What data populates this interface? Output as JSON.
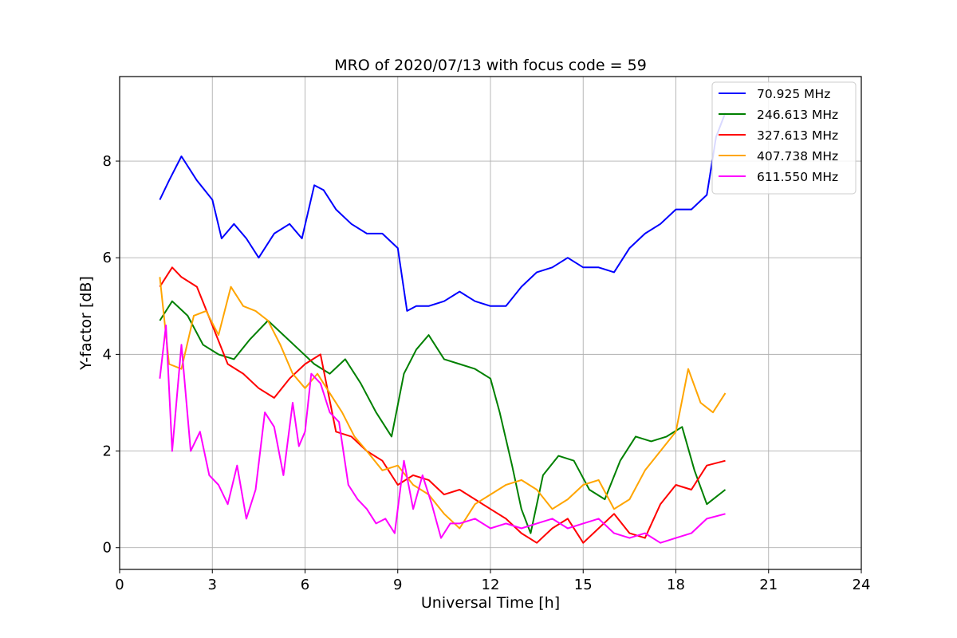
{
  "chart_data": {
    "type": "line",
    "title": "MRO of 2020/07/13 with focus code = 59",
    "xlabel": "Universal Time [h]",
    "ylabel": "Y-factor [dB]",
    "xlim": [
      0,
      24
    ],
    "ylim": [
      -0.45,
      9.75
    ],
    "xticks": [
      0,
      3,
      6,
      9,
      12,
      15,
      18,
      21,
      24
    ],
    "yticks": [
      0,
      2,
      4,
      6,
      8
    ],
    "grid": true,
    "legend_position": "top-right",
    "series": [
      {
        "name": " 70.925 MHz",
        "color": "#0000ff",
        "x": [
          1.3,
          1.6,
          2.0,
          2.5,
          3.0,
          3.3,
          3.7,
          4.1,
          4.5,
          5.0,
          5.5,
          5.9,
          6.3,
          6.6,
          7.0,
          7.5,
          8.0,
          8.5,
          9.0,
          9.3,
          9.6,
          10.0,
          10.5,
          11.0,
          11.5,
          12.0,
          12.5,
          13.0,
          13.5,
          14.0,
          14.5,
          15.0,
          15.5,
          16.0,
          16.5,
          17.0,
          17.5,
          18.0,
          18.5,
          19.0,
          19.3,
          19.6
        ],
        "y": [
          7.2,
          7.6,
          8.1,
          7.6,
          7.2,
          6.4,
          6.7,
          6.4,
          6.0,
          6.5,
          6.7,
          6.4,
          7.5,
          7.4,
          7.0,
          6.7,
          6.5,
          6.5,
          6.2,
          4.9,
          5.0,
          5.0,
          5.1,
          5.3,
          5.1,
          5.0,
          5.0,
          5.4,
          5.7,
          5.8,
          6.0,
          5.8,
          5.8,
          5.7,
          6.2,
          6.5,
          6.7,
          7.0,
          7.0,
          7.3,
          8.5,
          9.0
        ]
      },
      {
        "name": "246.613 MHz",
        "color": "#008000",
        "x": [
          1.3,
          1.7,
          2.2,
          2.7,
          3.2,
          3.7,
          4.2,
          4.8,
          5.3,
          5.8,
          6.3,
          6.8,
          7.3,
          7.8,
          8.3,
          8.8,
          9.2,
          9.6,
          10.0,
          10.5,
          11.0,
          11.5,
          12.0,
          12.3,
          12.7,
          13.0,
          13.3,
          13.7,
          14.2,
          14.7,
          15.2,
          15.7,
          16.2,
          16.7,
          17.2,
          17.7,
          18.2,
          18.6,
          19.0,
          19.6
        ],
        "y": [
          4.7,
          5.1,
          4.8,
          4.2,
          4.0,
          3.9,
          4.3,
          4.7,
          4.4,
          4.1,
          3.8,
          3.6,
          3.9,
          3.4,
          2.8,
          2.3,
          3.6,
          4.1,
          4.4,
          3.9,
          3.8,
          3.7,
          3.5,
          2.8,
          1.7,
          0.8,
          0.3,
          1.5,
          1.9,
          1.8,
          1.2,
          1.0,
          1.8,
          2.3,
          2.2,
          2.3,
          2.5,
          1.6,
          0.9,
          1.2
        ]
      },
      {
        "name": "327.613 MHz",
        "color": "#ff0000",
        "x": [
          1.3,
          1.7,
          2.0,
          2.5,
          3.0,
          3.5,
          4.0,
          4.5,
          5.0,
          5.5,
          6.0,
          6.5,
          7.0,
          7.5,
          8.0,
          8.5,
          9.0,
          9.5,
          10.0,
          10.5,
          11.0,
          11.5,
          12.0,
          12.5,
          13.0,
          13.5,
          14.0,
          14.5,
          15.0,
          15.5,
          16.0,
          16.5,
          17.0,
          17.5,
          18.0,
          18.5,
          19.0,
          19.6
        ],
        "y": [
          5.4,
          5.8,
          5.6,
          5.4,
          4.6,
          3.8,
          3.6,
          3.3,
          3.1,
          3.5,
          3.8,
          4.0,
          2.4,
          2.3,
          2.0,
          1.8,
          1.3,
          1.5,
          1.4,
          1.1,
          1.2,
          1.0,
          0.8,
          0.6,
          0.3,
          0.1,
          0.4,
          0.6,
          0.1,
          0.4,
          0.7,
          0.3,
          0.2,
          0.9,
          1.3,
          1.2,
          1.7,
          1.8
        ]
      },
      {
        "name": "407.738 MHz",
        "color": "#ffa500",
        "x": [
          1.3,
          1.6,
          2.0,
          2.4,
          2.8,
          3.2,
          3.6,
          4.0,
          4.4,
          4.8,
          5.2,
          5.6,
          6.0,
          6.4,
          6.8,
          7.2,
          7.6,
          8.0,
          8.5,
          9.0,
          9.5,
          10.0,
          10.5,
          11.0,
          11.5,
          12.0,
          12.5,
          13.0,
          13.5,
          14.0,
          14.5,
          15.0,
          15.5,
          16.0,
          16.5,
          17.0,
          17.5,
          18.0,
          18.4,
          18.8,
          19.2,
          19.6
        ],
        "y": [
          5.6,
          3.8,
          3.7,
          4.8,
          4.9,
          4.4,
          5.4,
          5.0,
          4.9,
          4.7,
          4.2,
          3.6,
          3.3,
          3.6,
          3.2,
          2.8,
          2.3,
          2.0,
          1.6,
          1.7,
          1.3,
          1.1,
          0.7,
          0.4,
          0.9,
          1.1,
          1.3,
          1.4,
          1.2,
          0.8,
          1.0,
          1.3,
          1.4,
          0.8,
          1.0,
          1.6,
          2.0,
          2.4,
          3.7,
          3.0,
          2.8,
          3.2
        ]
      },
      {
        "name": "611.550 MHz",
        "color": "#ff00ff",
        "x": [
          1.3,
          1.5,
          1.7,
          2.0,
          2.3,
          2.6,
          2.9,
          3.2,
          3.5,
          3.8,
          4.1,
          4.4,
          4.7,
          5.0,
          5.3,
          5.6,
          5.8,
          6.0,
          6.2,
          6.5,
          6.8,
          7.1,
          7.4,
          7.7,
          8.0,
          8.3,
          8.6,
          8.9,
          9.2,
          9.5,
          9.8,
          10.1,
          10.4,
          10.7,
          11.0,
          11.5,
          12.0,
          12.5,
          13.0,
          13.5,
          14.0,
          14.5,
          15.0,
          15.5,
          16.0,
          16.5,
          17.0,
          17.5,
          18.0,
          18.5,
          19.0,
          19.6
        ],
        "y": [
          3.5,
          4.6,
          2.0,
          4.2,
          2.0,
          2.4,
          1.5,
          1.3,
          0.9,
          1.7,
          0.6,
          1.2,
          2.8,
          2.5,
          1.5,
          3.0,
          2.1,
          2.4,
          3.6,
          3.4,
          2.8,
          2.6,
          1.3,
          1.0,
          0.8,
          0.5,
          0.6,
          0.3,
          1.8,
          0.8,
          1.5,
          0.9,
          0.2,
          0.5,
          0.5,
          0.6,
          0.4,
          0.5,
          0.4,
          0.5,
          0.6,
          0.4,
          0.5,
          0.6,
          0.3,
          0.2,
          0.3,
          0.1,
          0.2,
          0.3,
          0.6,
          0.7
        ]
      }
    ]
  }
}
